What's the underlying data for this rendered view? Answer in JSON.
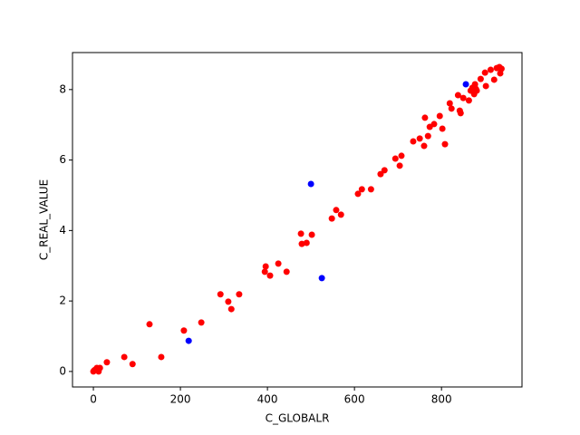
{
  "chart_data": {
    "type": "scatter",
    "x_label": "C_GLOBALR",
    "y_label": "C_REAL_VALUE",
    "xlim": [
      -48,
      985
    ],
    "ylim": [
      -0.44,
      9.05
    ],
    "xticks": [
      0,
      200,
      400,
      600,
      800
    ],
    "yticks": [
      0,
      2,
      4,
      6,
      8
    ],
    "series": [
      {
        "color": "#ff0000",
        "x": [
          0,
          4,
          8,
          12,
          2,
          10,
          15,
          31,
          71,
          90,
          129,
          156,
          208,
          248,
          292,
          310,
          317,
          335,
          394,
          396,
          406,
          425,
          444,
          477,
          479,
          490,
          502,
          548,
          558,
          569,
          608,
          617,
          638,
          660,
          669,
          694,
          704,
          708,
          735,
          750,
          760,
          762,
          769,
          773,
          783,
          796,
          802,
          808,
          819,
          823,
          838,
          842,
          844,
          850,
          863,
          867,
          871,
          875,
          877,
          879,
          881,
          890,
          900,
          902,
          913,
          921,
          927,
          933,
          935,
          938
        ],
        "values": [
          0,
          0.05,
          0.1,
          0,
          0.03,
          0.08,
          0.1,
          0.26,
          0.41,
          0.21,
          1.34,
          0.41,
          1.16,
          1.39,
          2.19,
          1.98,
          1.77,
          2.19,
          2.83,
          2.98,
          2.72,
          3.06,
          2.83,
          3.91,
          3.62,
          3.65,
          3.88,
          4.34,
          4.58,
          4.45,
          5.04,
          5.17,
          5.17,
          5.6,
          5.71,
          6.04,
          5.84,
          6.12,
          6.53,
          6.61,
          6.4,
          7.2,
          6.68,
          6.94,
          7.02,
          7.25,
          6.89,
          6.45,
          7.61,
          7.46,
          7.84,
          7.4,
          7.33,
          7.76,
          7.69,
          7.97,
          8.05,
          7.87,
          8.15,
          8.02,
          7.97,
          8.3,
          8.48,
          8.1,
          8.56,
          8.28,
          8.61,
          8.64,
          8.46,
          8.59
        ]
      },
      {
        "color": "#0000ff",
        "x": [
          219,
          500,
          525,
          856
        ],
        "values": [
          0.87,
          5.32,
          2.65,
          8.15
        ]
      }
    ]
  }
}
